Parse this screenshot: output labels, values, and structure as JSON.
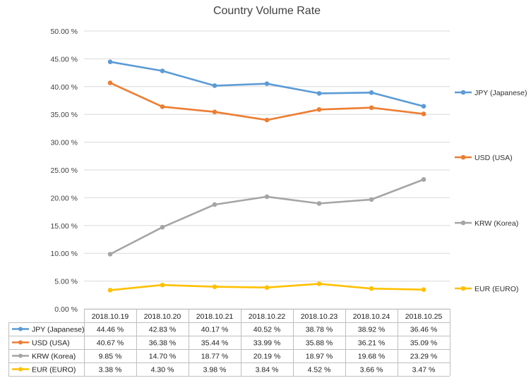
{
  "chart_data": {
    "type": "line",
    "title": "Country Volume Rate",
    "ylim": [
      0,
      50
    ],
    "ytick_labels": [
      "0.00 %",
      "5.00 %",
      "10.00 %",
      "15.00 %",
      "20.00 %",
      "25.00 %",
      "30.00 %",
      "35.00 %",
      "40.00 %",
      "45.00 %",
      "50.00 %"
    ],
    "categories": [
      "2018.10.19",
      "2018.10.20",
      "2018.10.21",
      "2018.10.22",
      "2018.10.23",
      "2018.10.24",
      "2018.10.25"
    ],
    "grid": true,
    "legend": "right",
    "data_table": true,
    "series": [
      {
        "name": "JPY (Japanese)",
        "color": "#5b9bd5",
        "values": [
          44.46,
          42.83,
          40.17,
          40.52,
          38.78,
          38.92,
          36.46
        ],
        "labels": [
          "44.46 %",
          "42.83 %",
          "40.17 %",
          "40.52 %",
          "38.78 %",
          "38.92 %",
          "36.46 %"
        ]
      },
      {
        "name": "USD (USA)",
        "color": "#ed7d31",
        "values": [
          40.67,
          36.38,
          35.44,
          33.99,
          35.88,
          36.21,
          35.09
        ],
        "labels": [
          "40.67 %",
          "36.38 %",
          "35.44 %",
          "33.99 %",
          "35.88 %",
          "36.21 %",
          "35.09 %"
        ]
      },
      {
        "name": "KRW (Korea)",
        "color": "#a5a5a5",
        "values": [
          9.85,
          14.7,
          18.77,
          20.19,
          18.97,
          19.68,
          23.29
        ],
        "labels": [
          "9.85 %",
          "14.70 %",
          "18.77 %",
          "20.19 %",
          "18.97 %",
          "19.68 %",
          "23.29 %"
        ]
      },
      {
        "name": "EUR (EURO)",
        "color": "#ffc000",
        "values": [
          3.38,
          4.3,
          3.98,
          3.84,
          4.52,
          3.66,
          3.47
        ],
        "labels": [
          "3.38 %",
          "4.30 %",
          "3.98 %",
          "3.84 %",
          "4.52 %",
          "3.66 %",
          "3.47 %"
        ]
      }
    ]
  }
}
